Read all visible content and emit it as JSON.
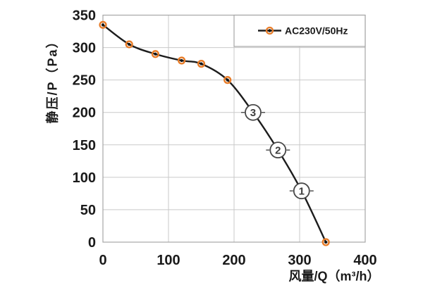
{
  "chart_data": {
    "type": "line",
    "title": "",
    "xlabel": "风量/Q（m³/h）",
    "ylabel": "静压/P（Pa）",
    "xlim": [
      0,
      400
    ],
    "ylim": [
      0,
      350
    ],
    "x_ticks": [
      0,
      100,
      200,
      300,
      400
    ],
    "y_ticks": [
      0,
      50,
      100,
      150,
      200,
      250,
      300,
      350
    ],
    "grid": true,
    "legend_position": "top-right-inside",
    "series": [
      {
        "name": "AC230V/50Hz",
        "x": [
          0,
          40,
          80,
          120,
          150,
          190,
          340
        ],
        "y": [
          335,
          305,
          290,
          280,
          275,
          250,
          0
        ]
      }
    ],
    "annotations": [
      {
        "label": "3",
        "x": 229,
        "y": 200
      },
      {
        "label": "2",
        "x": 267,
        "y": 142
      },
      {
        "label": "1",
        "x": 303,
        "y": 79
      }
    ],
    "style": {
      "background": "#ffffff",
      "grid_color": "#c9c9c9",
      "border_color": "#a6a6a6",
      "text_color": "#1a1a1a",
      "line_color": "#1c1c1c",
      "marker_ring_color": "#e87c28",
      "marker_core_color": "#141414",
      "annotation_stroke": "#474747",
      "annotation_fill": "#ffffff",
      "legend_border": "#a6a6a6",
      "legend_bg": "#ffffff"
    }
  }
}
